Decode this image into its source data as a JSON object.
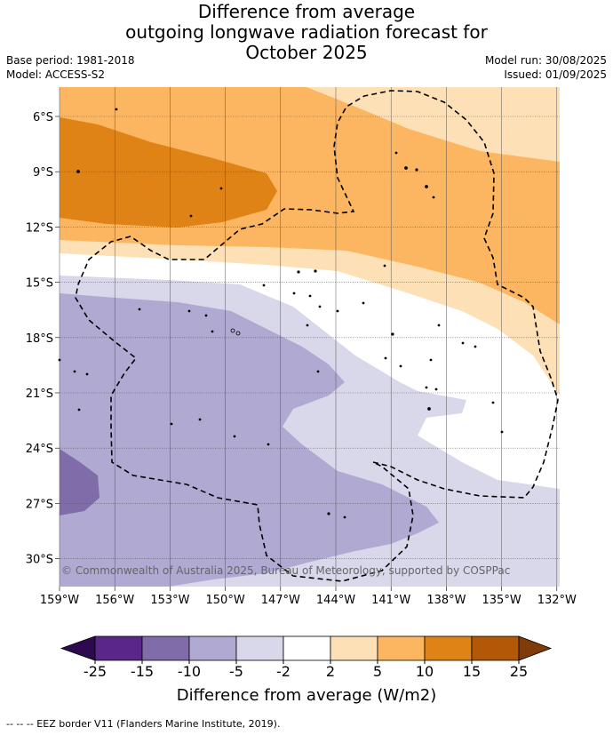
{
  "title": {
    "line1": "Difference from average",
    "line2": "outgoing longwave radiation forecast for",
    "line3": "October 2025"
  },
  "meta": {
    "base_period": "Base period: 1981-2018",
    "model": "Model: ACCESS-S2",
    "model_run": "Model run: 30/08/2025",
    "issued": "Issued: 01/09/2025"
  },
  "map": {
    "lat_ticks": [
      "6°S",
      "9°S",
      "12°S",
      "15°S",
      "18°S",
      "21°S",
      "24°S",
      "27°S",
      "30°S"
    ],
    "lon_ticks": [
      "159°W",
      "156°W",
      "153°W",
      "150°W",
      "147°W",
      "144°W",
      "141°W",
      "138°W",
      "135°W",
      "132°W"
    ],
    "copyright": "© Commonwealth of Australia 2025, Bureau of Meteorology, supported by COSPPac"
  },
  "colorbar": {
    "labels": [
      "-25",
      "-15",
      "-10",
      "-5",
      "-2",
      "2",
      "5",
      "10",
      "15",
      "25"
    ],
    "colors": [
      "#5a2688",
      "#7f6ca9",
      "#b0a9d1",
      "#d8d8ea",
      "#ffffff",
      "#fee0b6",
      "#fcb661",
      "#e08316",
      "#b35806"
    ],
    "low_extend_color": "#2d0a4f",
    "high_extend_color": "#7f3b08",
    "title": "Difference from average (W/m2)"
  },
  "footer": "-- -- -- EEZ border V11 (Flanders Marine Institute, 2019)."
}
